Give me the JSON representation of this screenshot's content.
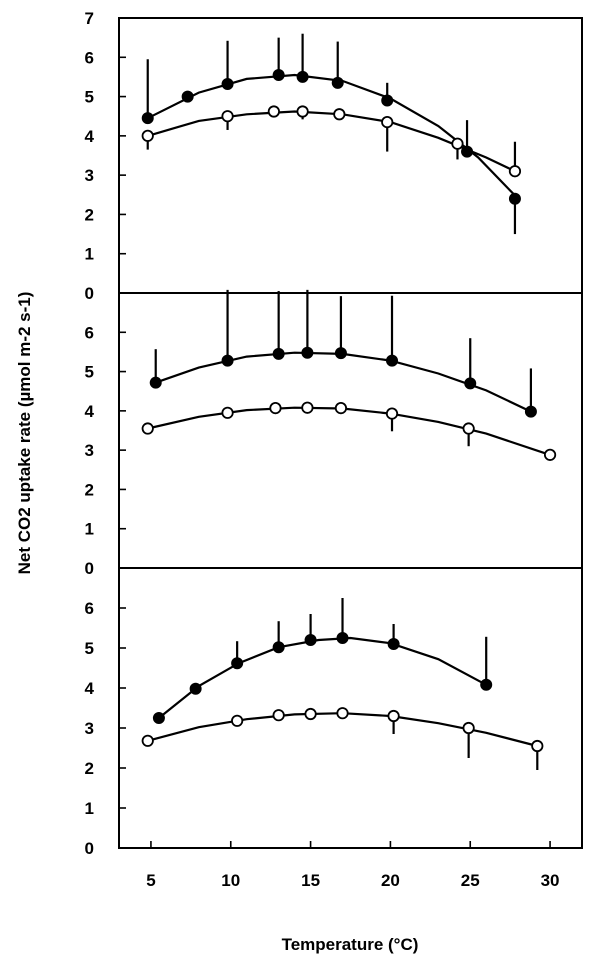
{
  "chart_data": {
    "type": "scatter",
    "xlabel": "Temperature (°C)",
    "ylabel": "Net CO2 uptake rate (µmol m-2 s-1)",
    "xlim": [
      3,
      32
    ],
    "x_ticks": [
      5,
      10,
      15,
      20,
      25,
      30
    ],
    "panels": [
      {
        "ylim": [
          0,
          7
        ],
        "y_ticks": [
          0,
          1,
          2,
          3,
          4,
          5,
          6,
          7
        ],
        "series": [
          {
            "marker": "filled",
            "points": [
              {
                "x": 4.8,
                "y": 4.45,
                "err": 1.5
              },
              {
                "x": 7.3,
                "y": 5.0,
                "err": 0
              },
              {
                "x": 9.8,
                "y": 5.32,
                "err": 1.1
              },
              {
                "x": 13.0,
                "y": 5.55,
                "err": 0.95
              },
              {
                "x": 14.5,
                "y": 5.5,
                "err": 1.1
              },
              {
                "x": 16.7,
                "y": 5.35,
                "err": 1.05
              },
              {
                "x": 19.8,
                "y": 4.9,
                "err": 0.45
              },
              {
                "x": 24.8,
                "y": 3.6,
                "err": 0.8
              },
              {
                "x": 27.8,
                "y": 2.4,
                "err": 0.9,
                "err_dir": "down"
              }
            ],
            "curve": [
              [
                4.8,
                4.45
              ],
              [
                8,
                5.1
              ],
              [
                11,
                5.45
              ],
              [
                14,
                5.55
              ],
              [
                17,
                5.4
              ],
              [
                20,
                4.95
              ],
              [
                23,
                4.25
              ],
              [
                25.5,
                3.45
              ],
              [
                28,
                2.4
              ]
            ]
          },
          {
            "marker": "open",
            "points": [
              {
                "x": 4.8,
                "y": 4.0,
                "err": 0.35,
                "err_dir": "down"
              },
              {
                "x": 9.8,
                "y": 4.5,
                "err": 0.35,
                "err_dir": "down"
              },
              {
                "x": 12.7,
                "y": 4.62,
                "err": 0
              },
              {
                "x": 14.5,
                "y": 4.62,
                "err": 0.2,
                "err_dir": "down"
              },
              {
                "x": 16.8,
                "y": 4.55,
                "err": 0
              },
              {
                "x": 19.8,
                "y": 4.35,
                "err": 0.75,
                "err_dir": "down"
              },
              {
                "x": 24.2,
                "y": 3.8,
                "err": 0.4,
                "err_dir": "down"
              },
              {
                "x": 27.8,
                "y": 3.1,
                "err": 0.75
              }
            ],
            "curve": [
              [
                4.8,
                4.0
              ],
              [
                8,
                4.38
              ],
              [
                11,
                4.55
              ],
              [
                14,
                4.62
              ],
              [
                17,
                4.55
              ],
              [
                20,
                4.35
              ],
              [
                23,
                3.95
              ],
              [
                26,
                3.45
              ],
              [
                27.8,
                3.1
              ]
            ]
          }
        ]
      },
      {
        "ylim": [
          0,
          7
        ],
        "y_ticks": [
          0,
          1,
          2,
          3,
          4,
          5,
          6
        ],
        "series": [
          {
            "marker": "filled",
            "points": [
              {
                "x": 5.3,
                "y": 4.72,
                "err": 0.85
              },
              {
                "x": 9.8,
                "y": 5.28,
                "err": 1.8
              },
              {
                "x": 13.0,
                "y": 5.45,
                "err": 1.6
              },
              {
                "x": 14.8,
                "y": 5.48,
                "err": 1.6
              },
              {
                "x": 16.9,
                "y": 5.47,
                "err": 1.45
              },
              {
                "x": 20.1,
                "y": 5.28,
                "err": 1.65
              },
              {
                "x": 25.0,
                "y": 4.7,
                "err": 1.15
              },
              {
                "x": 28.8,
                "y": 3.98,
                "err": 1.1
              }
            ],
            "curve": [
              [
                5.3,
                4.72
              ],
              [
                8,
                5.1
              ],
              [
                11,
                5.38
              ],
              [
                14,
                5.48
              ],
              [
                17,
                5.45
              ],
              [
                20,
                5.28
              ],
              [
                23,
                4.95
              ],
              [
                26,
                4.52
              ],
              [
                28.8,
                3.98
              ]
            ]
          },
          {
            "marker": "open",
            "points": [
              {
                "x": 4.8,
                "y": 3.55,
                "err": 0
              },
              {
                "x": 9.8,
                "y": 3.95,
                "err": 0
              },
              {
                "x": 12.8,
                "y": 4.07,
                "err": 0
              },
              {
                "x": 14.8,
                "y": 4.08,
                "err": 0
              },
              {
                "x": 16.9,
                "y": 4.07,
                "err": 0
              },
              {
                "x": 20.1,
                "y": 3.93,
                "err": 0.45,
                "err_dir": "down"
              },
              {
                "x": 24.9,
                "y": 3.55,
                "err": 0.45,
                "err_dir": "down"
              },
              {
                "x": 30.0,
                "y": 2.88,
                "err": 0
              }
            ],
            "curve": [
              [
                4.8,
                3.55
              ],
              [
                8,
                3.85
              ],
              [
                11,
                4.02
              ],
              [
                14,
                4.08
              ],
              [
                17,
                4.06
              ],
              [
                20,
                3.93
              ],
              [
                23,
                3.72
              ],
              [
                26,
                3.42
              ],
              [
                30,
                2.88
              ]
            ]
          }
        ]
      },
      {
        "ylim": [
          0,
          7
        ],
        "y_ticks": [
          0,
          1,
          2,
          3,
          4,
          5,
          6
        ],
        "series": [
          {
            "marker": "filled",
            "points": [
              {
                "x": 5.5,
                "y": 3.25,
                "err": 0
              },
              {
                "x": 7.8,
                "y": 3.98,
                "err": 0
              },
              {
                "x": 10.4,
                "y": 4.62,
                "err": 0.55
              },
              {
                "x": 13.0,
                "y": 5.02,
                "err": 0.65
              },
              {
                "x": 15.0,
                "y": 5.2,
                "err": 0.65
              },
              {
                "x": 17.0,
                "y": 5.25,
                "err": 1.0
              },
              {
                "x": 20.2,
                "y": 5.1,
                "err": 0.5
              },
              {
                "x": 26.0,
                "y": 4.08,
                "err": 1.2
              }
            ],
            "curve": [
              [
                5.5,
                3.25
              ],
              [
                8,
                4.05
              ],
              [
                10.5,
                4.62
              ],
              [
                13,
                5.02
              ],
              [
                15.5,
                5.2
              ],
              [
                17.5,
                5.25
              ],
              [
                20,
                5.12
              ],
              [
                23,
                4.72
              ],
              [
                26,
                4.08
              ]
            ]
          },
          {
            "marker": "open",
            "points": [
              {
                "x": 4.8,
                "y": 2.68,
                "err": 0
              },
              {
                "x": 10.4,
                "y": 3.18,
                "err": 0
              },
              {
                "x": 13.0,
                "y": 3.32,
                "err": 0
              },
              {
                "x": 15.0,
                "y": 3.35,
                "err": 0
              },
              {
                "x": 17.0,
                "y": 3.37,
                "err": 0
              },
              {
                "x": 20.2,
                "y": 3.3,
                "err": 0.45,
                "err_dir": "down"
              },
              {
                "x": 24.9,
                "y": 3.0,
                "err": 0.75,
                "err_dir": "down"
              },
              {
                "x": 29.2,
                "y": 2.55,
                "err": 0.6,
                "err_dir": "down"
              }
            ],
            "curve": [
              [
                4.8,
                2.68
              ],
              [
                8,
                3.02
              ],
              [
                11,
                3.22
              ],
              [
                14,
                3.34
              ],
              [
                17,
                3.37
              ],
              [
                20,
                3.3
              ],
              [
                23,
                3.12
              ],
              [
                26,
                2.88
              ],
              [
                29.2,
                2.55
              ]
            ]
          }
        ]
      }
    ]
  }
}
